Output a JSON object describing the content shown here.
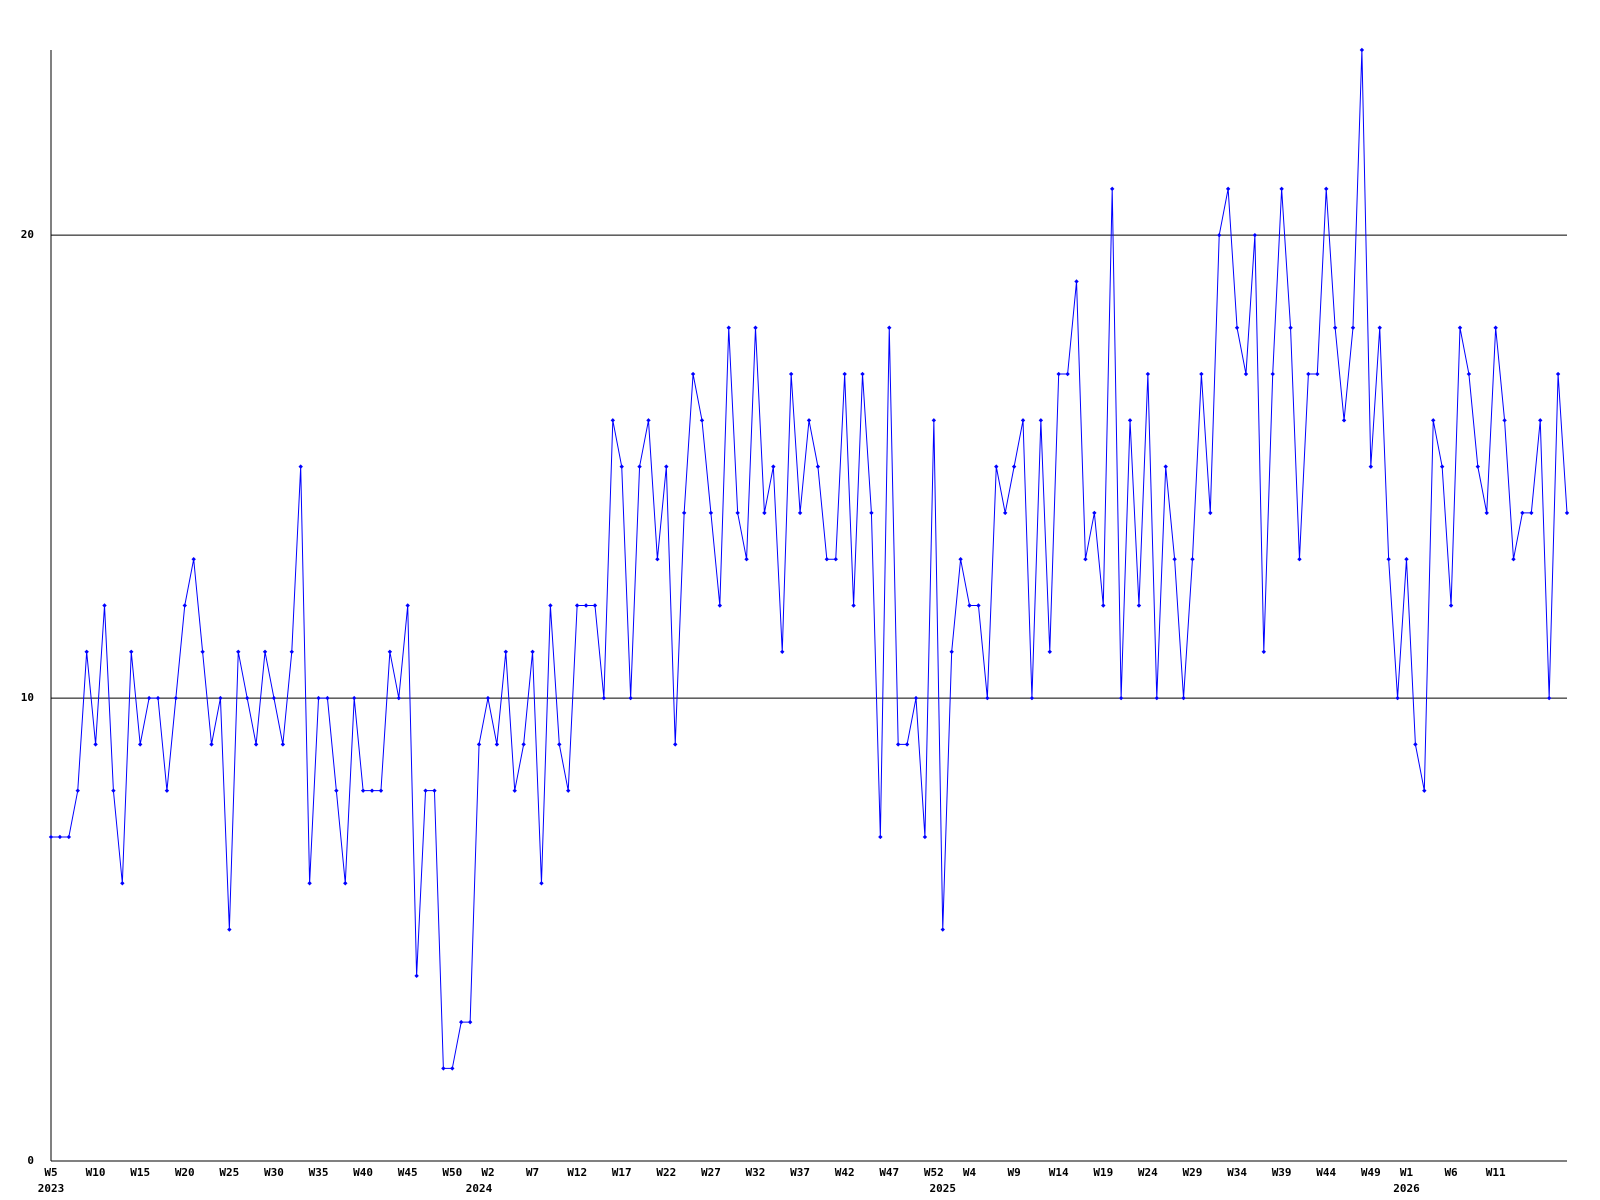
{
  "chart_data": {
    "type": "line",
    "color": "#0000ff",
    "grid": true,
    "ylim": [
      0,
      24
    ],
    "yticks": [
      0,
      10,
      20
    ],
    "categories": [
      "W5",
      null,
      null,
      null,
      null,
      "W10",
      null,
      null,
      null,
      null,
      "W15",
      null,
      null,
      null,
      null,
      "W20",
      null,
      null,
      null,
      null,
      "W25",
      null,
      null,
      null,
      null,
      "W30",
      null,
      null,
      null,
      null,
      "W35",
      null,
      null,
      null,
      null,
      "W40",
      null,
      null,
      null,
      null,
      "W45",
      null,
      null,
      null,
      null,
      "W50",
      null,
      null,
      null,
      "W2",
      null,
      null,
      null,
      null,
      "W7",
      null,
      null,
      null,
      null,
      "W12",
      null,
      null,
      null,
      null,
      "W17",
      null,
      null,
      null,
      null,
      "W22",
      null,
      null,
      null,
      null,
      "W27",
      null,
      null,
      null,
      null,
      "W32",
      null,
      null,
      null,
      null,
      "W37",
      null,
      null,
      null,
      null,
      "W42",
      null,
      null,
      null,
      null,
      "W47",
      null,
      null,
      null,
      null,
      "W52",
      null,
      null,
      null,
      "W4",
      null,
      null,
      null,
      null,
      "W9",
      null,
      null,
      null,
      null,
      "W14",
      null,
      null,
      null,
      null,
      "W19",
      null,
      null,
      null,
      null,
      "W24",
      null,
      null,
      null,
      null,
      "W29",
      null,
      null,
      null,
      null,
      "W34",
      null,
      null,
      null,
      null,
      "W39",
      null,
      null,
      null,
      null,
      "W44",
      null,
      null,
      null,
      null,
      "W49",
      null,
      null,
      null,
      "W1",
      null,
      null,
      null,
      null,
      "W6",
      null,
      null,
      null,
      null,
      "W11",
      null,
      null,
      null,
      null,
      null,
      null,
      null,
      null
    ],
    "x_years": [
      "2023",
      null,
      null,
      null,
      null,
      null,
      null,
      null,
      null,
      null,
      null,
      null,
      null,
      null,
      null,
      null,
      null,
      null,
      null,
      null,
      null,
      null,
      null,
      null,
      null,
      null,
      null,
      null,
      null,
      null,
      null,
      null,
      null,
      null,
      null,
      null,
      null,
      null,
      null,
      null,
      null,
      null,
      null,
      null,
      null,
      null,
      null,
      null,
      "2024",
      null,
      null,
      null,
      null,
      null,
      null,
      null,
      null,
      null,
      null,
      null,
      null,
      null,
      null,
      null,
      null,
      null,
      null,
      null,
      null,
      null,
      null,
      null,
      null,
      null,
      null,
      null,
      null,
      null,
      null,
      null,
      null,
      null,
      null,
      null,
      null,
      null,
      null,
      null,
      null,
      null,
      null,
      null,
      null,
      null,
      null,
      null,
      null,
      null,
      null,
      null,
      "2025",
      null,
      null,
      null,
      null,
      null,
      null,
      null,
      null,
      null,
      null,
      null,
      null,
      null,
      null,
      null,
      null,
      null,
      null,
      null,
      null,
      null,
      null,
      null,
      null,
      null,
      null,
      null,
      null,
      null,
      null,
      null,
      null,
      null,
      null,
      null,
      null,
      null,
      null,
      null,
      null,
      null,
      null,
      null,
      null,
      null,
      null,
      null,
      null,
      null,
      null,
      null,
      "2026",
      null,
      null,
      null,
      null,
      null,
      null,
      null,
      null,
      null,
      null,
      null,
      null,
      null,
      null,
      null,
      null,
      null,
      null
    ],
    "values": [
      7,
      7,
      7,
      8,
      11,
      9,
      12,
      8,
      6,
      11,
      9,
      10,
      10,
      8,
      10,
      12,
      13,
      11,
      9,
      10,
      5,
      11,
      10,
      9,
      11,
      10,
      9,
      11,
      15,
      6,
      10,
      10,
      8,
      6,
      10,
      8,
      8,
      8,
      11,
      10,
      12,
      4,
      8,
      8,
      2,
      2,
      3,
      3,
      9,
      10,
      9,
      11,
      8,
      9,
      11,
      6,
      12,
      9,
      8,
      12,
      12,
      12,
      10,
      16,
      15,
      10,
      15,
      16,
      13,
      15,
      9,
      14,
      17,
      16,
      14,
      12,
      18,
      14,
      13,
      18,
      14,
      15,
      11,
      17,
      14,
      16,
      15,
      13,
      13,
      17,
      12,
      17,
      14,
      7,
      18,
      9,
      9,
      10,
      7,
      16,
      5,
      11,
      13,
      12,
      12,
      10,
      15,
      14,
      15,
      16,
      10,
      16,
      11,
      17,
      17,
      19,
      13,
      14,
      12,
      21,
      10,
      16,
      12,
      17,
      10,
      15,
      13,
      10,
      13,
      17,
      14,
      20,
      21,
      18,
      17,
      20,
      11,
      17,
      21,
      18,
      13,
      17,
      17,
      21,
      18,
      16,
      18,
      24,
      15,
      18,
      13,
      10,
      13,
      9,
      8,
      16,
      15,
      12,
      18,
      17,
      15,
      14,
      18,
      16,
      13,
      14,
      14,
      16,
      10,
      17,
      14
    ]
  }
}
